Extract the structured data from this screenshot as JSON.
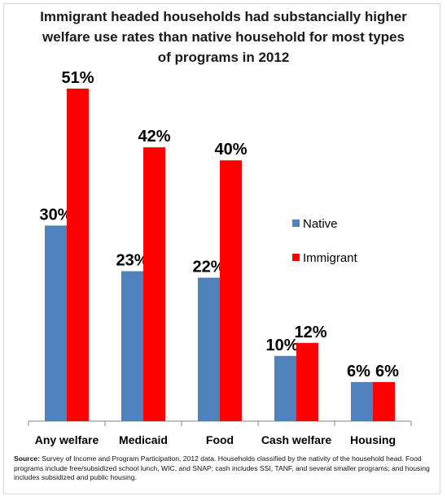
{
  "chart_data": {
    "type": "bar",
    "title_lines": [
      "Immigrant headed households had substancially higher",
      "welfare use rates than native household for most types",
      "of programs in 2012"
    ],
    "categories": [
      "Any welfare",
      "Medicaid",
      "Food",
      "Cash welfare",
      "Housing"
    ],
    "series": [
      {
        "name": "Native",
        "values": [
          30,
          23,
          22,
          10,
          6
        ],
        "labels": [
          "30%",
          "23%",
          "22%",
          "10%",
          "6%"
        ]
      },
      {
        "name": "Immigrant",
        "values": [
          51,
          42,
          40,
          12,
          6
        ],
        "labels": [
          "51%",
          "42%",
          "40%",
          "12%",
          "6%"
        ]
      }
    ],
    "colors": {
      "Native": "#4f81bd",
      "Immigrant": "#ff0000"
    },
    "ylim": [
      0,
      51
    ],
    "grid": false,
    "legend_position": "right"
  },
  "source": {
    "label": "Source:",
    "text": "Survey of Income and Program Participation, 2012 data. Households classified by the nativity of the household head. Food programs include free/subsidized school lunch, WIC, and SNAP; cash includes SSI, TANF, and several smaller programs; and housing includes subsidized and public housing."
  }
}
